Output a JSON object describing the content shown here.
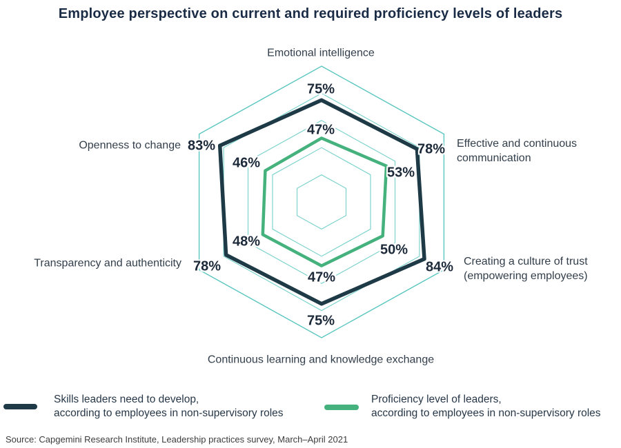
{
  "title": "Employee perspective on current and required proficiency levels of leaders",
  "chart_data": {
    "type": "radar",
    "axes": [
      "Emotional intelligence",
      "Effective and continuous communication",
      "Creating a culture of trust (empowering employees)",
      "Continuous learning and knowledge exchange",
      "Transparency and authenticity",
      "Openness to change"
    ],
    "series": [
      {
        "name": "Skills leaders need to develop, according to employees in non-supervisory roles",
        "color": "#1e3a47",
        "values": [
          75,
          78,
          84,
          75,
          78,
          83
        ]
      },
      {
        "name": "Proficiency level of leaders, according to employees in non-supervisory roles",
        "color": "#45b27e",
        "values": [
          47,
          53,
          50,
          47,
          48,
          46
        ]
      }
    ],
    "scale": {
      "min": 0,
      "max": 100,
      "grid_steps": [
        20,
        40,
        60,
        80,
        100
      ]
    },
    "grid_color": "#74d0ca",
    "grid_outer_color": "#59c6bf",
    "value_suffix": "%",
    "grid_shape": "hexagon",
    "legend_position": "bottom"
  },
  "legend": {
    "items": [
      {
        "line1": "Skills leaders need to develop,",
        "line2": "according to employees in non-supervisory roles",
        "color": "#1e3a47"
      },
      {
        "line1": "Proficiency level of leaders,",
        "line2": "according to employees in non-supervisory roles",
        "color": "#45b27e"
      }
    ]
  },
  "source": "Source: Capgemini Research Institute, Leadership practices survey, March–April 2021"
}
